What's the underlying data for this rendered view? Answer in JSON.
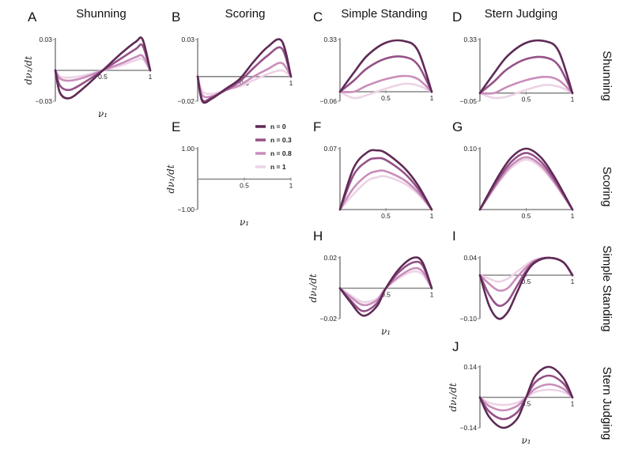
{
  "column_titles": [
    "Shunning",
    "Scoring",
    "Simple Standing",
    "Stern Judging"
  ],
  "row_titles": [
    "Shunning",
    "Scoring",
    "Simple Standing",
    "Stern Judging"
  ],
  "ylabel": "dν₁/dt",
  "xlabel": "ν₁",
  "legend": [
    "n = 0",
    "n = 0.3",
    "n = 0.8",
    "n = 1"
  ],
  "series_colors": [
    "#5e2a55",
    "#955187",
    "#c98dbb",
    "#ecd3e6"
  ],
  "chart_data": [
    {
      "panel": "A",
      "type": "line",
      "ylim": [
        -0.03,
        0.03
      ],
      "yticks": [
        "0.03",
        "−0.03"
      ],
      "xticks": [
        "0.5",
        "1"
      ],
      "series": [
        {
          "name": "n = 0",
          "x": [
            0,
            0.05,
            0.15,
            0.3,
            0.5,
            0.7,
            0.85,
            0.92,
            1
          ],
          "values": [
            0,
            -0.022,
            -0.027,
            -0.017,
            0,
            0.017,
            0.028,
            0.03,
            0
          ]
        },
        {
          "name": "n = 0.3",
          "x": [
            0,
            0.05,
            0.15,
            0.3,
            0.5,
            0.7,
            0.85,
            0.92,
            1
          ],
          "values": [
            0,
            -0.015,
            -0.019,
            -0.012,
            0,
            0.012,
            0.021,
            0.024,
            0
          ]
        },
        {
          "name": "n = 0.8",
          "x": [
            0,
            0.05,
            0.15,
            0.3,
            0.5,
            0.7,
            0.85,
            0.92,
            1
          ],
          "values": [
            0,
            -0.008,
            -0.01,
            -0.007,
            0,
            0.007,
            0.013,
            0.014,
            0
          ]
        },
        {
          "name": "n = 1",
          "x": [
            0,
            0.05,
            0.15,
            0.3,
            0.5,
            0.7,
            0.85,
            0.92,
            1
          ],
          "values": [
            0,
            -0.006,
            -0.007,
            -0.005,
            0,
            0.005,
            0.01,
            0.011,
            0
          ]
        }
      ]
    },
    {
      "panel": "B",
      "type": "line",
      "ylim": [
        -0.02,
        0.03
      ],
      "yticks": [
        "0.03",
        "−0.02"
      ],
      "xticks": [
        "0.5",
        "1"
      ],
      "series": [
        {
          "name": "n = 0",
          "x": [
            0,
            0.05,
            0.15,
            0.3,
            0.45,
            0.6,
            0.75,
            0.9,
            1
          ],
          "values": [
            0,
            -0.02,
            -0.018,
            -0.01,
            -0.002,
            0.012,
            0.024,
            0.029,
            0
          ]
        },
        {
          "name": "n = 0.3",
          "x": [
            0,
            0.05,
            0.15,
            0.3,
            0.45,
            0.6,
            0.75,
            0.9,
            1
          ],
          "values": [
            0,
            -0.019,
            -0.017,
            -0.011,
            -0.004,
            0.007,
            0.017,
            0.023,
            0
          ]
        },
        {
          "name": "n = 0.8",
          "x": [
            0,
            0.05,
            0.15,
            0.3,
            0.45,
            0.6,
            0.75,
            0.9,
            1
          ],
          "values": [
            0,
            -0.015,
            -0.016,
            -0.011,
            -0.007,
            0,
            0.006,
            0.011,
            0
          ]
        },
        {
          "name": "n = 1",
          "x": [
            0,
            0.05,
            0.15,
            0.3,
            0.45,
            0.6,
            0.75,
            0.9,
            1
          ],
          "values": [
            0,
            -0.012,
            -0.014,
            -0.011,
            -0.008,
            -0.003,
            0.002,
            0.005,
            0
          ]
        }
      ]
    },
    {
      "panel": "C",
      "type": "line",
      "ylim": [
        -0.06,
        0.33
      ],
      "yticks": [
        "0.33",
        "−0.06"
      ],
      "xticks": [
        "0.5",
        "1"
      ],
      "series": [
        {
          "name": "n = 0",
          "x": [
            0,
            0.15,
            0.3,
            0.5,
            0.7,
            0.85,
            1
          ],
          "values": [
            0,
            0.12,
            0.23,
            0.31,
            0.32,
            0.26,
            0
          ]
        },
        {
          "name": "n = 0.3",
          "x": [
            0,
            0.15,
            0.3,
            0.5,
            0.7,
            0.85,
            1
          ],
          "values": [
            0,
            0.07,
            0.15,
            0.21,
            0.22,
            0.17,
            0
          ]
        },
        {
          "name": "n = 0.8",
          "x": [
            0,
            0.15,
            0.3,
            0.5,
            0.7,
            0.85,
            1
          ],
          "values": [
            0,
            0,
            0.04,
            0.08,
            0.1,
            0.08,
            0
          ]
        },
        {
          "name": "n = 1",
          "x": [
            0,
            0.15,
            0.3,
            0.5,
            0.7,
            0.85,
            1
          ],
          "values": [
            0,
            -0.04,
            -0.02,
            0.02,
            0.05,
            0.04,
            0
          ]
        }
      ]
    },
    {
      "panel": "D",
      "type": "line",
      "ylim": [
        -0.05,
        0.33
      ],
      "yticks": [
        "0.33",
        "−0.05"
      ],
      "xticks": [
        "0.5",
        "1"
      ],
      "series": [
        {
          "name": "n = 0",
          "x": [
            0,
            0.15,
            0.3,
            0.5,
            0.7,
            0.85,
            1
          ],
          "values": [
            0,
            0.12,
            0.23,
            0.31,
            0.32,
            0.26,
            0
          ]
        },
        {
          "name": "n = 0.3",
          "x": [
            0,
            0.15,
            0.3,
            0.5,
            0.7,
            0.85,
            1
          ],
          "values": [
            0,
            0.07,
            0.15,
            0.21,
            0.22,
            0.17,
            0
          ]
        },
        {
          "name": "n = 0.8",
          "x": [
            0,
            0.15,
            0.3,
            0.5,
            0.7,
            0.85,
            1
          ],
          "values": [
            0,
            0,
            0.04,
            0.08,
            0.1,
            0.08,
            0
          ]
        },
        {
          "name": "n = 1",
          "x": [
            0,
            0.15,
            0.3,
            0.5,
            0.7,
            0.85,
            1
          ],
          "values": [
            0,
            -0.03,
            -0.02,
            0.02,
            0.05,
            0.04,
            0
          ]
        }
      ]
    },
    {
      "panel": "E",
      "type": "line",
      "ylim": [
        -1,
        1
      ],
      "yticks": [
        "1.00",
        "−1.00"
      ],
      "xticks": [
        "0.5",
        "1"
      ],
      "series": []
    },
    {
      "panel": "F",
      "type": "line",
      "ylim": [
        0,
        0.07
      ],
      "yticks": [
        "0.07"
      ],
      "xticks": [
        "0.5",
        "1"
      ],
      "series": [
        {
          "name": "n = 0",
          "x": [
            0,
            0.15,
            0.3,
            0.4,
            0.5,
            0.7,
            0.85,
            1
          ],
          "values": [
            0,
            0.048,
            0.066,
            0.068,
            0.065,
            0.048,
            0.028,
            0
          ]
        },
        {
          "name": "n = 0.3",
          "x": [
            0,
            0.15,
            0.3,
            0.4,
            0.5,
            0.7,
            0.85,
            1
          ],
          "values": [
            0,
            0.04,
            0.056,
            0.059,
            0.057,
            0.042,
            0.024,
            0
          ]
        },
        {
          "name": "n = 0.8",
          "x": [
            0,
            0.15,
            0.3,
            0.4,
            0.5,
            0.7,
            0.85,
            1
          ],
          "values": [
            0,
            0.025,
            0.04,
            0.044,
            0.044,
            0.034,
            0.02,
            0
          ]
        },
        {
          "name": "n = 1",
          "x": [
            0,
            0.15,
            0.3,
            0.4,
            0.5,
            0.7,
            0.85,
            1
          ],
          "values": [
            0,
            0.018,
            0.033,
            0.037,
            0.038,
            0.03,
            0.018,
            0
          ]
        }
      ]
    },
    {
      "panel": "G",
      "type": "line",
      "ylim": [
        0,
        0.1
      ],
      "yticks": [
        "0.10"
      ],
      "xticks": [
        "0.5",
        "1"
      ],
      "series": [
        {
          "name": "n = 0",
          "x": [
            0,
            0.2,
            0.35,
            0.5,
            0.65,
            0.8,
            1
          ],
          "values": [
            0,
            0.055,
            0.087,
            0.1,
            0.087,
            0.055,
            0
          ]
        },
        {
          "name": "n = 0.3",
          "x": [
            0,
            0.2,
            0.35,
            0.5,
            0.65,
            0.8,
            1
          ],
          "values": [
            0,
            0.05,
            0.08,
            0.093,
            0.08,
            0.05,
            0
          ]
        },
        {
          "name": "n = 0.8",
          "x": [
            0,
            0.2,
            0.35,
            0.5,
            0.65,
            0.8,
            1
          ],
          "values": [
            0,
            0.046,
            0.074,
            0.086,
            0.074,
            0.046,
            0
          ]
        },
        {
          "name": "n = 1",
          "x": [
            0,
            0.2,
            0.35,
            0.5,
            0.65,
            0.8,
            1
          ],
          "values": [
            0,
            0.044,
            0.07,
            0.082,
            0.07,
            0.044,
            0
          ]
        }
      ]
    },
    {
      "panel": "H",
      "type": "line",
      "ylim": [
        -0.02,
        0.02
      ],
      "yticks": [
        "0.02",
        "−0.02"
      ],
      "xticks": [
        "0.5",
        "1"
      ],
      "series": [
        {
          "name": "n = 0",
          "x": [
            0,
            0.1,
            0.25,
            0.4,
            0.5,
            0.65,
            0.8,
            0.9,
            1
          ],
          "values": [
            0,
            -0.008,
            -0.018,
            -0.012,
            0,
            0.013,
            0.02,
            0.017,
            0
          ]
        },
        {
          "name": "n = 0.3",
          "x": [
            0,
            0.1,
            0.25,
            0.4,
            0.5,
            0.65,
            0.8,
            0.9,
            1
          ],
          "values": [
            0,
            -0.007,
            -0.015,
            -0.01,
            0,
            0.011,
            0.017,
            0.015,
            0
          ]
        },
        {
          "name": "n = 0.8",
          "x": [
            0,
            0.1,
            0.25,
            0.4,
            0.5,
            0.65,
            0.8,
            0.9,
            1
          ],
          "values": [
            0,
            -0.005,
            -0.011,
            -0.008,
            0,
            0.008,
            0.013,
            0.011,
            0
          ]
        },
        {
          "name": "n = 1",
          "x": [
            0,
            0.1,
            0.25,
            0.4,
            0.5,
            0.65,
            0.8,
            0.9,
            1
          ],
          "values": [
            0,
            -0.004,
            -0.009,
            -0.007,
            0,
            0.007,
            0.011,
            0.009,
            0
          ]
        }
      ]
    },
    {
      "panel": "I",
      "type": "line",
      "ylim": [
        -0.1,
        0.04
      ],
      "yticks": [
        "0.04",
        "−0.10"
      ],
      "xticks": [
        "0.5",
        "1"
      ],
      "series": [
        {
          "name": "n = 0",
          "x": [
            0,
            0.1,
            0.2,
            0.3,
            0.4,
            0.5,
            0.6,
            0.75,
            0.9,
            1
          ],
          "values": [
            0,
            -0.07,
            -0.1,
            -0.085,
            -0.04,
            0.005,
            0.03,
            0.04,
            0.03,
            0
          ]
        },
        {
          "name": "n = 0.3",
          "x": [
            0,
            0.1,
            0.2,
            0.3,
            0.4,
            0.5,
            0.6,
            0.75,
            0.9,
            1
          ],
          "values": [
            0,
            -0.045,
            -0.07,
            -0.06,
            -0.025,
            0.01,
            0.032,
            0.04,
            0.03,
            0
          ]
        },
        {
          "name": "n = 0.8",
          "x": [
            0,
            0.1,
            0.2,
            0.3,
            0.4,
            0.5,
            0.6,
            0.75,
            0.9,
            1
          ],
          "values": [
            0,
            -0.02,
            -0.035,
            -0.03,
            -0.005,
            0.018,
            0.034,
            0.04,
            0.03,
            0
          ]
        },
        {
          "name": "n = 1",
          "x": [
            0,
            0.1,
            0.2,
            0.3,
            0.4,
            0.5,
            0.6,
            0.75,
            0.9,
            1
          ],
          "values": [
            0,
            -0.008,
            -0.015,
            -0.008,
            0.008,
            0.024,
            0.036,
            0.04,
            0.03,
            0
          ]
        }
      ]
    },
    {
      "panel": "J",
      "type": "line",
      "ylim": [
        -0.14,
        0.14
      ],
      "yticks": [
        "0.14",
        "−0.14"
      ],
      "xticks": [
        "0.5",
        "1"
      ],
      "series": [
        {
          "name": "n = 0",
          "x": [
            0,
            0.1,
            0.25,
            0.4,
            0.5,
            0.6,
            0.75,
            0.9,
            1
          ],
          "values": [
            0,
            -0.09,
            -0.14,
            -0.1,
            0,
            0.1,
            0.14,
            0.09,
            0
          ]
        },
        {
          "name": "n = 0.3",
          "x": [
            0,
            0.1,
            0.25,
            0.4,
            0.5,
            0.6,
            0.75,
            0.9,
            1
          ],
          "values": [
            0,
            -0.065,
            -0.1,
            -0.07,
            0,
            0.07,
            0.1,
            0.065,
            0
          ]
        },
        {
          "name": "n = 0.8",
          "x": [
            0,
            0.1,
            0.25,
            0.4,
            0.5,
            0.6,
            0.75,
            0.9,
            1
          ],
          "values": [
            0,
            -0.04,
            -0.06,
            -0.04,
            0,
            0.04,
            0.06,
            0.04,
            0
          ]
        },
        {
          "name": "n = 1",
          "x": [
            0,
            0.1,
            0.25,
            0.4,
            0.5,
            0.6,
            0.75,
            0.9,
            1
          ],
          "values": [
            0,
            -0.025,
            -0.035,
            -0.025,
            0,
            0.025,
            0.035,
            0.025,
            0
          ]
        }
      ]
    }
  ]
}
